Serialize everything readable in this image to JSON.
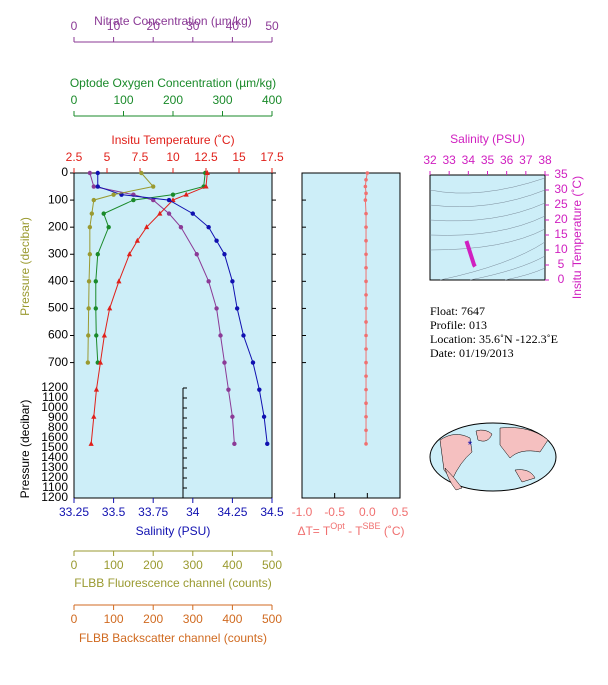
{
  "chart_data": [
    {
      "type": "profile",
      "ylabel": "Pressure (decibar)",
      "ylim": [
        0,
        1200
      ],
      "yticks": [
        0,
        100,
        200,
        300,
        400,
        500,
        600,
        700
      ],
      "lower_ticks": [
        "1200",
        "1100",
        "1000",
        "900",
        "800",
        "1600",
        "1500",
        "1400",
        "1300",
        "1200",
        "1100",
        "1200"
      ],
      "axes": [
        {
          "label": "Nitrate Concentration (µm/kg)",
          "color": "#8b3a96",
          "xlim": [
            0,
            50
          ],
          "xticks": [
            0,
            10,
            20,
            30,
            40,
            50
          ],
          "pressure": [
            0,
            50,
            80,
            100,
            150,
            200,
            300,
            400,
            500,
            600,
            700,
            800,
            900,
            1000
          ],
          "values": [
            4,
            5,
            15,
            20,
            24,
            27,
            31,
            34,
            36,
            37,
            38,
            39,
            40,
            40.5
          ]
        },
        {
          "label": "Optode Oxygen Concentration (µm/kg)",
          "color": "#1a8a2a",
          "xlim": [
            0,
            400
          ],
          "xticks": [
            0,
            100,
            200,
            300,
            400
          ],
          "pressure": [
            0,
            50,
            80,
            100,
            150,
            200,
            300,
            400,
            500,
            600,
            700
          ],
          "values": [
            265,
            262,
            200,
            120,
            60,
            70,
            48,
            44,
            44,
            45,
            48
          ]
        },
        {
          "label": "Insitu Temperature (˚C)",
          "color": "#e0201a",
          "xlim": [
            2.5,
            17.5
          ],
          "xticks": [
            2.5,
            5.0,
            7.5,
            10.0,
            12.5,
            15.0,
            17.5
          ],
          "pressure": [
            0,
            50,
            80,
            100,
            150,
            200,
            250,
            300,
            400,
            500,
            600,
            700,
            800,
            900,
            1000
          ],
          "values": [
            12.6,
            12.5,
            11.0,
            10.0,
            9.0,
            8.0,
            7.3,
            6.7,
            5.9,
            5.2,
            4.8,
            4.5,
            4.2,
            4.0,
            3.8
          ]
        },
        {
          "label": "Salinity (PSU)",
          "color": "#1010b0",
          "xlim": [
            33.25,
            34.5
          ],
          "xticks": [
            33.25,
            33.5,
            33.75,
            34.0,
            34.25,
            34.5
          ],
          "pressure": [
            0,
            50,
            80,
            100,
            150,
            200,
            250,
            300,
            400,
            500,
            600,
            700,
            800,
            900,
            1000
          ],
          "values": [
            33.4,
            33.4,
            33.55,
            33.85,
            34.0,
            34.1,
            34.15,
            34.2,
            34.25,
            34.28,
            34.32,
            34.38,
            34.42,
            34.45,
            34.47
          ]
        },
        {
          "label": "FLBB Fluorescence channel (counts)",
          "color": "#9a9a30",
          "xlim": [
            0,
            500
          ],
          "xticks": [
            0,
            100,
            200,
            300,
            400,
            500
          ],
          "pressure": [
            0,
            50,
            80,
            100,
            150,
            200,
            300,
            400,
            500,
            600,
            700
          ],
          "values": [
            170,
            200,
            100,
            50,
            45,
            40,
            40,
            38,
            37,
            36,
            35
          ]
        },
        {
          "label": "FLBB Backscatter channel (counts)",
          "color": "#d06a20",
          "xlim": [
            0,
            500
          ],
          "xticks": [
            0,
            100,
            200,
            300,
            400,
            500
          ],
          "pressure": [],
          "values": []
        }
      ]
    },
    {
      "type": "profile",
      "xlabel": [
        "ΔT= T",
        "Opt",
        " - T",
        "SBE",
        " (˚C)"
      ],
      "color": "#f07070",
      "ylim": [
        0,
        1200
      ],
      "xlim": [
        -1,
        0.5
      ],
      "xticks": [
        {
          "value": -1,
          "label": "-1.0"
        },
        -0.5,
        {
          "value": 0,
          "label": "0.0"
        },
        0.5
      ],
      "pressure": [
        0,
        25,
        50,
        75,
        100,
        150,
        200,
        250,
        300,
        350,
        400,
        450,
        500,
        550,
        600,
        650,
        700,
        750,
        800,
        850,
        900,
        950,
        1000
      ],
      "values": [
        0,
        -0.02,
        -0.03,
        -0.02,
        -0.03,
        -0.02,
        -0.02,
        -0.02,
        -0.02,
        -0.02,
        -0.02,
        -0.02,
        -0.02,
        -0.02,
        -0.02,
        -0.02,
        -0.02,
        -0.02,
        -0.02,
        -0.02,
        -0.02,
        -0.02,
        -0.02
      ]
    },
    {
      "type": "ts",
      "xlabel": "Salinity (PSU)",
      "ylabel": "Insitu Temperature (˚C)",
      "color": "#d020c0",
      "xlim": [
        32,
        38
      ],
      "xticks": [
        32,
        33,
        34,
        35,
        36,
        37,
        38
      ],
      "ylim": [
        0,
        35
      ],
      "yticks": [
        0,
        5,
        10,
        15,
        20,
        25,
        30,
        35
      ],
      "x": [
        33.9,
        33.95,
        34.0,
        34.1,
        34.2,
        34.3,
        34.35
      ],
      "values": [
        13,
        12,
        11,
        9,
        7,
        5,
        4.5
      ]
    }
  ],
  "info": [
    "Float:  7647",
    "Profile:  013",
    "Location:  35.6˚N  -122.3˚E",
    "Date:  01/19/2013"
  ]
}
